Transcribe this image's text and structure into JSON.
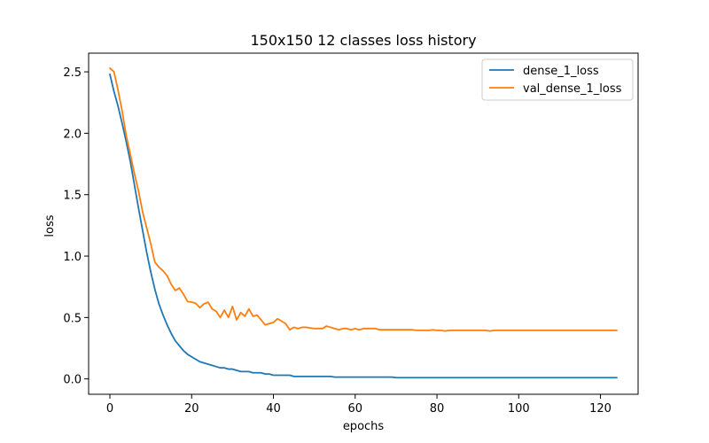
{
  "chart_data": {
    "type": "line",
    "title": "150x150 12 classes loss history",
    "xlabel": "epochs",
    "ylabel": "loss",
    "xlim": [
      -5.2,
      129.2
    ],
    "ylim": [
      -0.125,
      2.652
    ],
    "xticks": [
      0,
      20,
      40,
      60,
      80,
      100,
      120
    ],
    "xtick_labels": [
      "0",
      "20",
      "40",
      "60",
      "80",
      "100",
      "120"
    ],
    "yticks": [
      0.0,
      0.5,
      1.0,
      1.5,
      2.0,
      2.5
    ],
    "ytick_labels": [
      "0.0",
      "0.5",
      "1.0",
      "1.5",
      "2.0",
      "2.5"
    ],
    "grid": false,
    "legend": "top-right",
    "x": [
      0,
      1,
      2,
      3,
      4,
      5,
      6,
      7,
      8,
      9,
      10,
      11,
      12,
      13,
      14,
      15,
      16,
      17,
      18,
      19,
      20,
      21,
      22,
      23,
      24,
      25,
      26,
      27,
      28,
      29,
      30,
      31,
      32,
      33,
      34,
      35,
      36,
      37,
      38,
      39,
      40,
      41,
      42,
      43,
      44,
      45,
      46,
      47,
      48,
      49,
      50,
      51,
      52,
      53,
      54,
      55,
      56,
      57,
      58,
      59,
      60,
      61,
      62,
      63,
      64,
      65,
      66,
      67,
      68,
      69,
      70,
      71,
      72,
      73,
      74,
      75,
      76,
      77,
      78,
      79,
      80,
      81,
      82,
      83,
      84,
      85,
      86,
      87,
      88,
      89,
      90,
      91,
      92,
      93,
      94,
      95,
      96,
      97,
      98,
      99,
      100,
      101,
      102,
      103,
      104,
      105,
      106,
      107,
      108,
      109,
      110,
      111,
      112,
      113,
      114,
      115,
      116,
      117,
      118,
      119,
      120,
      121,
      122,
      123,
      124
    ],
    "series": [
      {
        "name": "dense_1_loss",
        "color": "#1f77b4",
        "values": [
          2.48,
          2.34,
          2.22,
          2.08,
          1.93,
          1.77,
          1.58,
          1.39,
          1.21,
          1.03,
          0.87,
          0.73,
          0.61,
          0.52,
          0.44,
          0.37,
          0.31,
          0.27,
          0.23,
          0.2,
          0.18,
          0.16,
          0.14,
          0.13,
          0.12,
          0.11,
          0.1,
          0.09,
          0.09,
          0.08,
          0.08,
          0.07,
          0.06,
          0.06,
          0.06,
          0.05,
          0.05,
          0.05,
          0.04,
          0.04,
          0.03,
          0.03,
          0.03,
          0.03,
          0.03,
          0.02,
          0.02,
          0.02,
          0.02,
          0.02,
          0.02,
          0.02,
          0.02,
          0.02,
          0.02,
          0.015,
          0.015,
          0.015,
          0.015,
          0.015,
          0.015,
          0.015,
          0.015,
          0.015,
          0.015,
          0.015,
          0.015,
          0.015,
          0.015,
          0.015,
          0.01,
          0.01,
          0.01,
          0.01,
          0.01,
          0.01,
          0.01,
          0.01,
          0.01,
          0.01,
          0.01,
          0.01,
          0.01,
          0.01,
          0.01,
          0.01,
          0.01,
          0.01,
          0.01,
          0.01,
          0.01,
          0.01,
          0.01,
          0.01,
          0.01,
          0.01,
          0.01,
          0.01,
          0.01,
          0.01,
          0.01,
          0.01,
          0.01,
          0.01,
          0.01,
          0.01,
          0.01,
          0.01,
          0.01,
          0.01,
          0.01,
          0.01,
          0.01,
          0.01,
          0.01,
          0.01,
          0.01,
          0.01,
          0.01,
          0.01,
          0.01,
          0.01,
          0.01,
          0.01,
          0.01
        ]
      },
      {
        "name": "val_dense_1_loss",
        "color": "#ff7f0e",
        "values": [
          2.53,
          2.5,
          2.35,
          2.18,
          1.98,
          1.83,
          1.67,
          1.53,
          1.36,
          1.23,
          1.1,
          0.95,
          0.91,
          0.88,
          0.84,
          0.77,
          0.72,
          0.74,
          0.69,
          0.63,
          0.625,
          0.615,
          0.58,
          0.61,
          0.625,
          0.57,
          0.55,
          0.5,
          0.56,
          0.5,
          0.59,
          0.48,
          0.54,
          0.51,
          0.57,
          0.51,
          0.52,
          0.48,
          0.44,
          0.45,
          0.46,
          0.49,
          0.47,
          0.45,
          0.4,
          0.42,
          0.41,
          0.42,
          0.42,
          0.415,
          0.41,
          0.41,
          0.41,
          0.43,
          0.42,
          0.41,
          0.4,
          0.41,
          0.41,
          0.4,
          0.41,
          0.4,
          0.41,
          0.41,
          0.41,
          0.41,
          0.4,
          0.4,
          0.4,
          0.4,
          0.4,
          0.4,
          0.4,
          0.4,
          0.4,
          0.395,
          0.395,
          0.395,
          0.395,
          0.4,
          0.395,
          0.395,
          0.39,
          0.395,
          0.395,
          0.395,
          0.395,
          0.395,
          0.395,
          0.395,
          0.395,
          0.395,
          0.395,
          0.39,
          0.395,
          0.395,
          0.395,
          0.395,
          0.395,
          0.395,
          0.395,
          0.395,
          0.395,
          0.395,
          0.395,
          0.395,
          0.395,
          0.395,
          0.395,
          0.395,
          0.395,
          0.395,
          0.395,
          0.395,
          0.395,
          0.395,
          0.395,
          0.395,
          0.395,
          0.395,
          0.395,
          0.395,
          0.395,
          0.395,
          0.395
        ]
      }
    ]
  }
}
